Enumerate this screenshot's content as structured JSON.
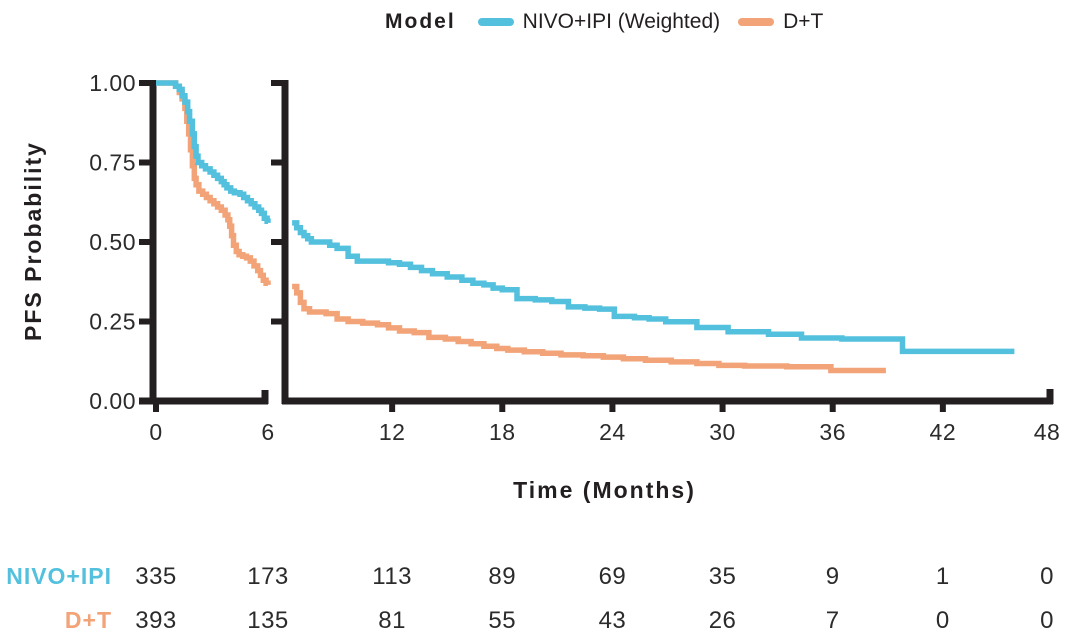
{
  "legend": {
    "title": "Model"
  },
  "axes": {
    "y_label": "PFS Probability",
    "x_label": "Time (Months)",
    "y_ticks": [
      "1.00",
      "0.75",
      "0.50",
      "0.25",
      "0.00"
    ],
    "y_tick_values": [
      1.0,
      0.75,
      0.5,
      0.25,
      0.0
    ],
    "x_ticks": [
      0,
      6,
      12,
      18,
      24,
      30,
      36,
      42,
      48
    ]
  },
  "chart_data": {
    "type": "line",
    "subtype": "kaplan-meier-step",
    "title": "",
    "xlabel": "Time (Months)",
    "ylabel": "PFS Probability",
    "xlim": [
      0,
      48
    ],
    "ylim": [
      0.0,
      1.0
    ],
    "grid": false,
    "legend_position": "top",
    "axis_break": {
      "between_months": [
        6,
        6.5
      ],
      "note": "x-axis broken after month 6; both panels share same month scale"
    },
    "series": [
      {
        "id": "nivo-ipi-weighted",
        "name": "NIVO+IPI (Weighted)",
        "color": "#53C1DE",
        "segments": [
          {
            "panel": "left",
            "points": [
              [
                0,
                1.0
              ],
              [
                0.85,
                1.0
              ],
              [
                1.05,
                0.99
              ],
              [
                1.25,
                0.98
              ],
              [
                1.4,
                0.96
              ],
              [
                1.55,
                0.94
              ],
              [
                1.7,
                0.91
              ],
              [
                1.8,
                0.88
              ],
              [
                1.95,
                0.84
              ],
              [
                2.05,
                0.8
              ],
              [
                2.15,
                0.77
              ],
              [
                2.25,
                0.75
              ],
              [
                2.45,
                0.74
              ],
              [
                2.65,
                0.73
              ],
              [
                2.9,
                0.72
              ],
              [
                3.1,
                0.71
              ],
              [
                3.3,
                0.7
              ],
              [
                3.5,
                0.69
              ],
              [
                3.65,
                0.68
              ],
              [
                3.8,
                0.67
              ],
              [
                4.0,
                0.66
              ],
              [
                4.2,
                0.655
              ],
              [
                4.5,
                0.65
              ],
              [
                4.7,
                0.64
              ],
              [
                4.9,
                0.63
              ],
              [
                5.1,
                0.62
              ],
              [
                5.3,
                0.61
              ],
              [
                5.5,
                0.6
              ],
              [
                5.65,
                0.59
              ],
              [
                5.8,
                0.575
              ],
              [
                5.95,
                0.565
              ],
              [
                6.0,
                0.56
              ]
            ]
          },
          {
            "panel": "right",
            "points": [
              [
                6.55,
                0.56
              ],
              [
                6.8,
                0.545
              ],
              [
                7.0,
                0.53
              ],
              [
                7.2,
                0.52
              ],
              [
                7.4,
                0.51
              ],
              [
                7.6,
                0.5
              ],
              [
                8.6,
                0.49
              ],
              [
                9.0,
                0.48
              ],
              [
                9.6,
                0.455
              ],
              [
                10.1,
                0.44
              ],
              [
                11.8,
                0.435
              ],
              [
                12.4,
                0.43
              ],
              [
                13.0,
                0.42
              ],
              [
                13.6,
                0.41
              ],
              [
                14.2,
                0.4
              ],
              [
                15.0,
                0.39
              ],
              [
                15.8,
                0.38
              ],
              [
                16.4,
                0.37
              ],
              [
                17.0,
                0.365
              ],
              [
                17.5,
                0.355
              ],
              [
                18.0,
                0.35
              ],
              [
                18.8,
                0.322
              ],
              [
                19.8,
                0.318
              ],
              [
                20.7,
                0.313
              ],
              [
                21.6,
                0.296
              ],
              [
                22.5,
                0.292
              ],
              [
                23.3,
                0.289
              ],
              [
                24.1,
                0.266
              ],
              [
                25.2,
                0.262
              ],
              [
                26.0,
                0.258
              ],
              [
                26.9,
                0.249
              ],
              [
                28.6,
                0.231
              ],
              [
                30.3,
                0.218
              ],
              [
                32.5,
                0.21
              ],
              [
                34.3,
                0.198
              ],
              [
                36.5,
                0.195
              ],
              [
                39.8,
                0.156
              ],
              [
                45.9,
                0.156
              ]
            ]
          }
        ]
      },
      {
        "id": "d-t",
        "name": "D+T",
        "color": "#F2A378",
        "segments": [
          {
            "panel": "left",
            "points": [
              [
                0,
                1.0
              ],
              [
                0.9,
                1.0
              ],
              [
                1.05,
                0.99
              ],
              [
                1.25,
                0.97
              ],
              [
                1.4,
                0.95
              ],
              [
                1.55,
                0.92
              ],
              [
                1.65,
                0.88
              ],
              [
                1.75,
                0.84
              ],
              [
                1.85,
                0.79
              ],
              [
                1.95,
                0.74
              ],
              [
                2.05,
                0.7
              ],
              [
                2.15,
                0.68
              ],
              [
                2.3,
                0.66
              ],
              [
                2.5,
                0.65
              ],
              [
                2.7,
                0.64
              ],
              [
                2.9,
                0.63
              ],
              [
                3.1,
                0.62
              ],
              [
                3.3,
                0.61
              ],
              [
                3.5,
                0.6
              ],
              [
                3.7,
                0.585
              ],
              [
                3.85,
                0.57
              ],
              [
                3.95,
                0.55
              ],
              [
                4.05,
                0.52
              ],
              [
                4.15,
                0.49
              ],
              [
                4.3,
                0.47
              ],
              [
                4.45,
                0.46
              ],
              [
                4.65,
                0.455
              ],
              [
                4.85,
                0.45
              ],
              [
                5.05,
                0.44
              ],
              [
                5.25,
                0.425
              ],
              [
                5.45,
                0.41
              ],
              [
                5.6,
                0.395
              ],
              [
                5.75,
                0.38
              ],
              [
                5.9,
                0.37
              ],
              [
                6.0,
                0.365
              ]
            ]
          },
          {
            "panel": "right",
            "points": [
              [
                6.55,
                0.36
              ],
              [
                6.8,
                0.34
              ],
              [
                7.0,
                0.31
              ],
              [
                7.2,
                0.29
              ],
              [
                7.5,
                0.28
              ],
              [
                8.4,
                0.275
              ],
              [
                9.0,
                0.258
              ],
              [
                9.6,
                0.25
              ],
              [
                10.4,
                0.245
              ],
              [
                11.2,
                0.24
              ],
              [
                11.8,
                0.23
              ],
              [
                12.4,
                0.22
              ],
              [
                13.2,
                0.215
              ],
              [
                14.0,
                0.2
              ],
              [
                14.9,
                0.195
              ],
              [
                15.6,
                0.187
              ],
              [
                16.3,
                0.18
              ],
              [
                17.0,
                0.172
              ],
              [
                17.7,
                0.165
              ],
              [
                18.3,
                0.16
              ],
              [
                19.2,
                0.155
              ],
              [
                20.2,
                0.15
              ],
              [
                21.2,
                0.145
              ],
              [
                22.4,
                0.142
              ],
              [
                23.5,
                0.138
              ],
              [
                24.6,
                0.133
              ],
              [
                25.8,
                0.128
              ],
              [
                27.2,
                0.123
              ],
              [
                28.6,
                0.118
              ],
              [
                29.8,
                0.112
              ],
              [
                31.2,
                0.11
              ],
              [
                33.5,
                0.108
              ],
              [
                35.9,
                0.096
              ],
              [
                38.9,
                0.096
              ]
            ]
          }
        ]
      }
    ]
  },
  "risk_table": {
    "time_points": [
      0,
      6,
      12,
      18,
      24,
      30,
      36,
      42,
      48
    ],
    "rows": [
      {
        "id": "nivo-ipi",
        "label": "NIVO+IPI",
        "color": "#53C1DE",
        "values": [
          335,
          173,
          113,
          89,
          69,
          35,
          9,
          1,
          0
        ]
      },
      {
        "id": "d-t",
        "label": "D+T",
        "color": "#F2A378",
        "values": [
          393,
          135,
          81,
          55,
          43,
          26,
          7,
          0,
          0
        ]
      }
    ]
  },
  "colors": {
    "axis": "#231F20",
    "text": "#2b2b2b",
    "background": "#FFFFFF"
  }
}
